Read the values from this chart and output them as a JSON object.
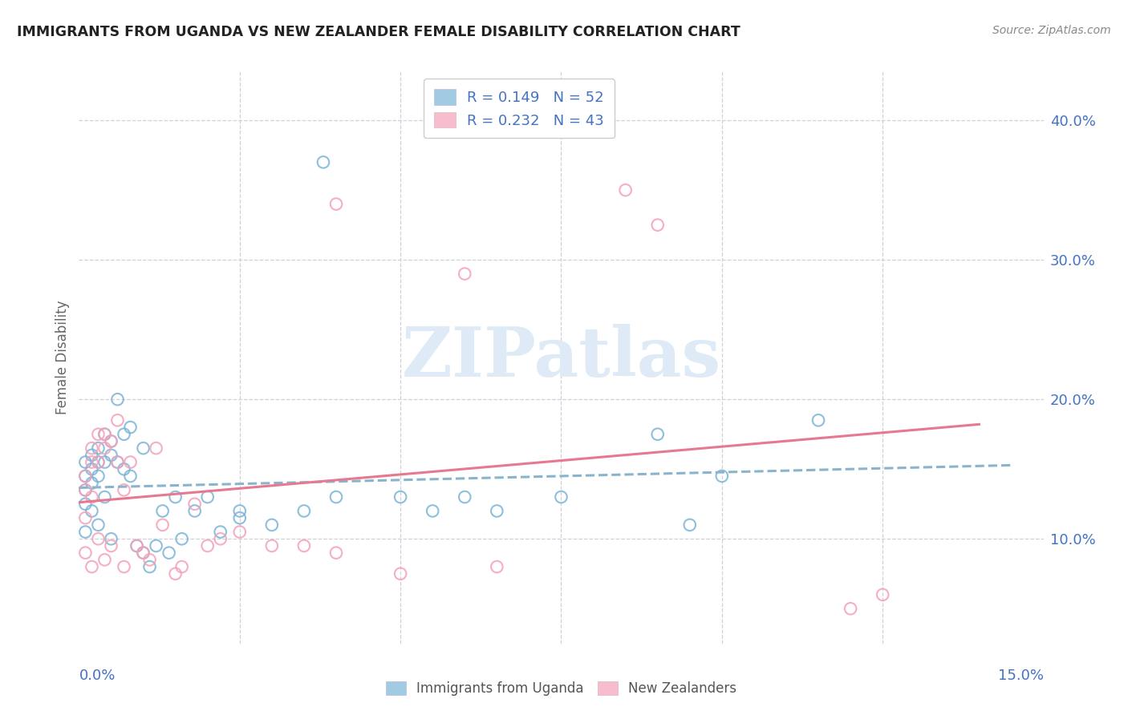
{
  "title": "IMMIGRANTS FROM UGANDA VS NEW ZEALANDER FEMALE DISABILITY CORRELATION CHART",
  "source": "Source: ZipAtlas.com",
  "ylabel": "Female Disability",
  "right_yticks": [
    0.1,
    0.2,
    0.3,
    0.4
  ],
  "right_yticklabels": [
    "10.0%",
    "20.0%",
    "30.0%",
    "40.0%"
  ],
  "xmin": 0.0,
  "xmax": 0.15,
  "ymin": 0.025,
  "ymax": 0.435,
  "legend_r1": "R = 0.149   N = 52",
  "legend_r2": "R = 0.232   N = 43",
  "color_blue": "#7ab4d8",
  "color_pink": "#f4a0b8",
  "trendline_blue_color": "#8ab4cc",
  "trendline_pink_color": "#e87890",
  "watermark_text": "ZIPatlas",
  "watermark_color": "#deeaf5",
  "grid_color": "#d0d0dd",
  "title_color": "#222222",
  "source_color": "#888888",
  "ylabel_color": "#666666",
  "tick_label_color": "#4472c4",
  "legend_text_color": "#4472c4",
  "legend_label_color": "#555555",
  "blue_x": [
    0.001,
    0.001,
    0.001,
    0.001,
    0.001,
    0.002,
    0.002,
    0.002,
    0.002,
    0.003,
    0.003,
    0.003,
    0.003,
    0.004,
    0.004,
    0.004,
    0.005,
    0.005,
    0.005,
    0.006,
    0.006,
    0.007,
    0.007,
    0.008,
    0.008,
    0.009,
    0.01,
    0.01,
    0.011,
    0.012,
    0.013,
    0.014,
    0.015,
    0.016,
    0.018,
    0.02,
    0.022,
    0.025,
    0.025,
    0.03,
    0.035,
    0.04,
    0.05,
    0.055,
    0.06,
    0.065,
    0.075,
    0.09,
    0.095,
    0.1,
    0.038,
    0.115
  ],
  "blue_y": [
    0.155,
    0.145,
    0.135,
    0.125,
    0.105,
    0.16,
    0.15,
    0.14,
    0.12,
    0.165,
    0.155,
    0.145,
    0.11,
    0.175,
    0.155,
    0.13,
    0.17,
    0.16,
    0.1,
    0.2,
    0.155,
    0.175,
    0.15,
    0.18,
    0.145,
    0.095,
    0.165,
    0.09,
    0.08,
    0.095,
    0.12,
    0.09,
    0.13,
    0.1,
    0.12,
    0.13,
    0.105,
    0.12,
    0.115,
    0.11,
    0.12,
    0.13,
    0.13,
    0.12,
    0.13,
    0.12,
    0.13,
    0.175,
    0.11,
    0.145,
    0.37,
    0.185
  ],
  "pink_x": [
    0.001,
    0.001,
    0.001,
    0.001,
    0.002,
    0.002,
    0.002,
    0.002,
    0.003,
    0.003,
    0.003,
    0.004,
    0.004,
    0.004,
    0.005,
    0.005,
    0.006,
    0.006,
    0.007,
    0.007,
    0.008,
    0.009,
    0.01,
    0.011,
    0.012,
    0.013,
    0.015,
    0.016,
    0.018,
    0.02,
    0.022,
    0.025,
    0.03,
    0.035,
    0.04,
    0.05,
    0.06,
    0.065,
    0.09,
    0.12,
    0.04,
    0.085,
    0.125
  ],
  "pink_y": [
    0.145,
    0.135,
    0.115,
    0.09,
    0.165,
    0.155,
    0.13,
    0.08,
    0.175,
    0.155,
    0.1,
    0.175,
    0.165,
    0.085,
    0.17,
    0.095,
    0.185,
    0.155,
    0.135,
    0.08,
    0.155,
    0.095,
    0.09,
    0.085,
    0.165,
    0.11,
    0.075,
    0.08,
    0.125,
    0.095,
    0.1,
    0.105,
    0.095,
    0.095,
    0.09,
    0.075,
    0.29,
    0.08,
    0.325,
    0.05,
    0.34,
    0.35,
    0.06
  ]
}
